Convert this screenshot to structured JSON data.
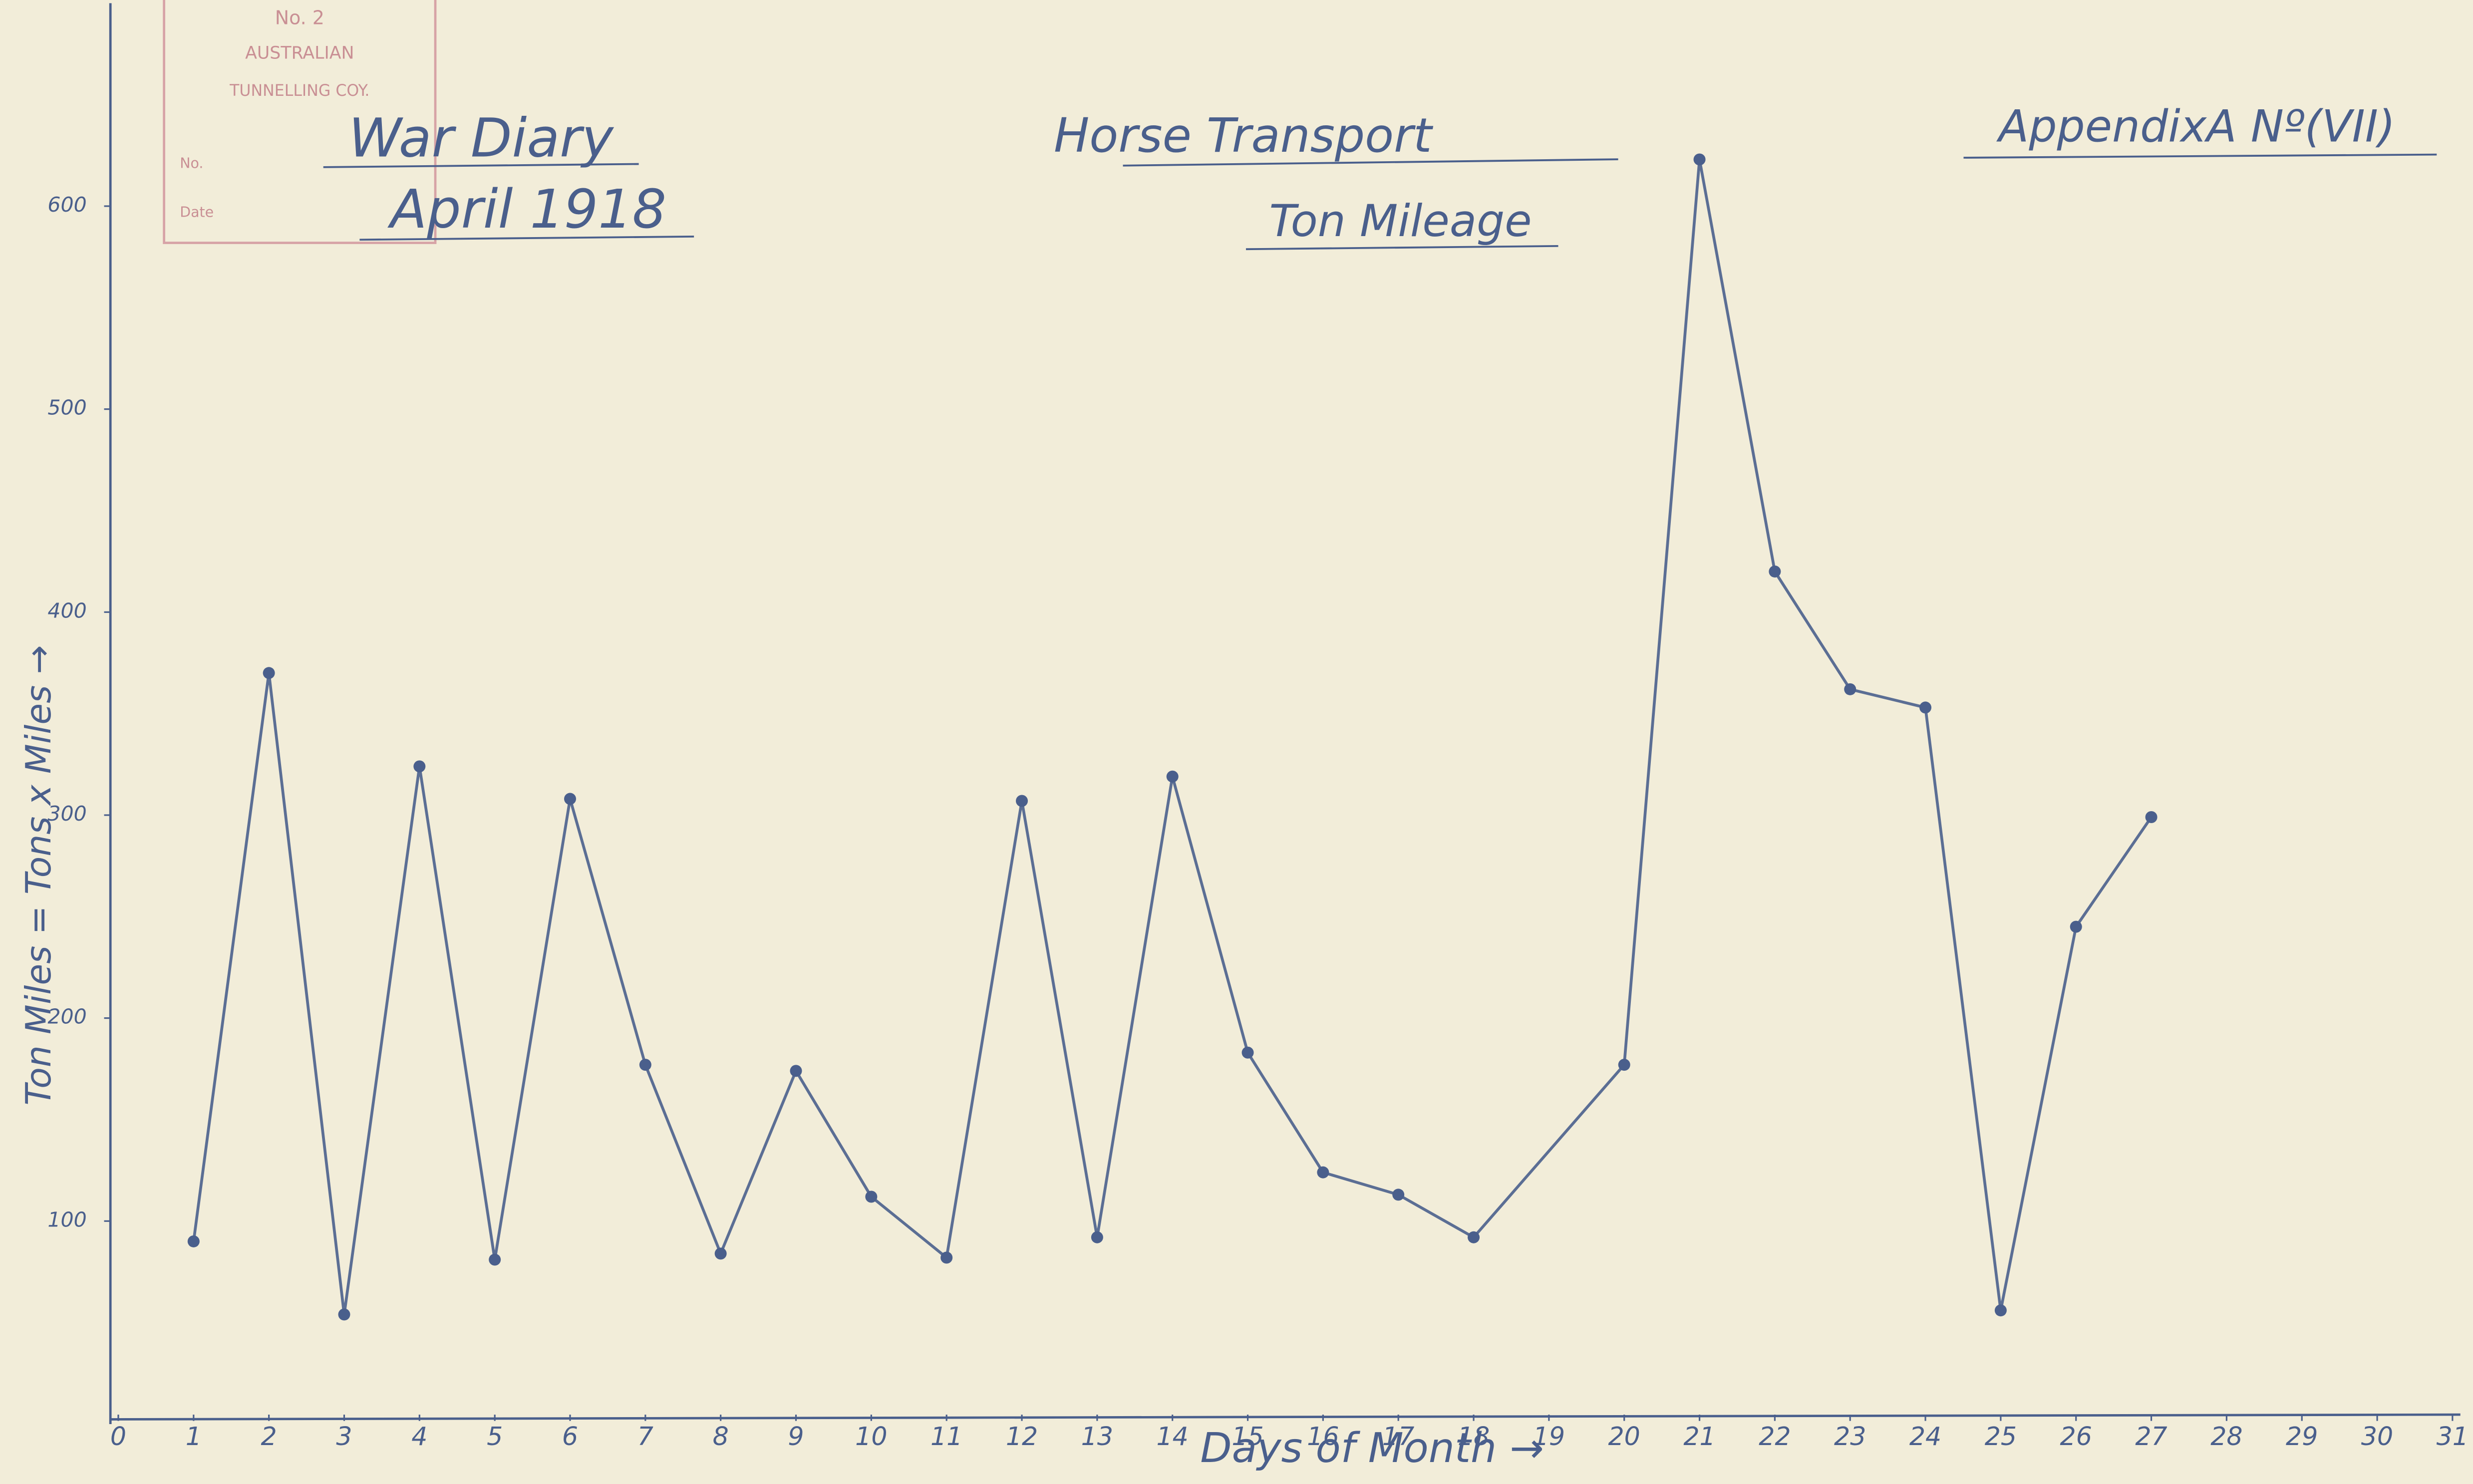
{
  "chart_data": {
    "type": "line",
    "title": "Horse Transport",
    "subtitle": "Ton Mileage",
    "annotations": [
      "War Diary",
      "April 1918",
      "AppendixA Nº(VII)"
    ],
    "stamp": [
      "No. 2",
      "AUSTRALIAN",
      "TUNNELLING COY.",
      "No.",
      "Date"
    ],
    "xlabel": "Days of Month →",
    "ylabel": "Ton Miles = Tons x Miles →",
    "x": [
      1,
      2,
      3,
      4,
      5,
      6,
      7,
      8,
      9,
      10,
      11,
      12,
      13,
      14,
      15,
      16,
      17,
      18,
      20,
      21,
      22,
      23,
      24,
      25,
      26,
      27
    ],
    "values": [
      90,
      370,
      54,
      324,
      81,
      308,
      177,
      84,
      174,
      112,
      82,
      307,
      92,
      319,
      183,
      124,
      113,
      92,
      177,
      623,
      420,
      362,
      353,
      56,
      245,
      299
    ],
    "color": "#4a5f8c",
    "xlim": [
      0,
      31
    ],
    "xticks": [
      0,
      1,
      2,
      3,
      4,
      5,
      6,
      7,
      8,
      9,
      10,
      11,
      12,
      13,
      14,
      15,
      16,
      17,
      18,
      19,
      20,
      21,
      22,
      23,
      24,
      25,
      26,
      27,
      28,
      29,
      30,
      31
    ],
    "ylim": [
      0,
      700
    ],
    "yticks": [
      100,
      200,
      300,
      400,
      500,
      600
    ],
    "grid": false
  }
}
